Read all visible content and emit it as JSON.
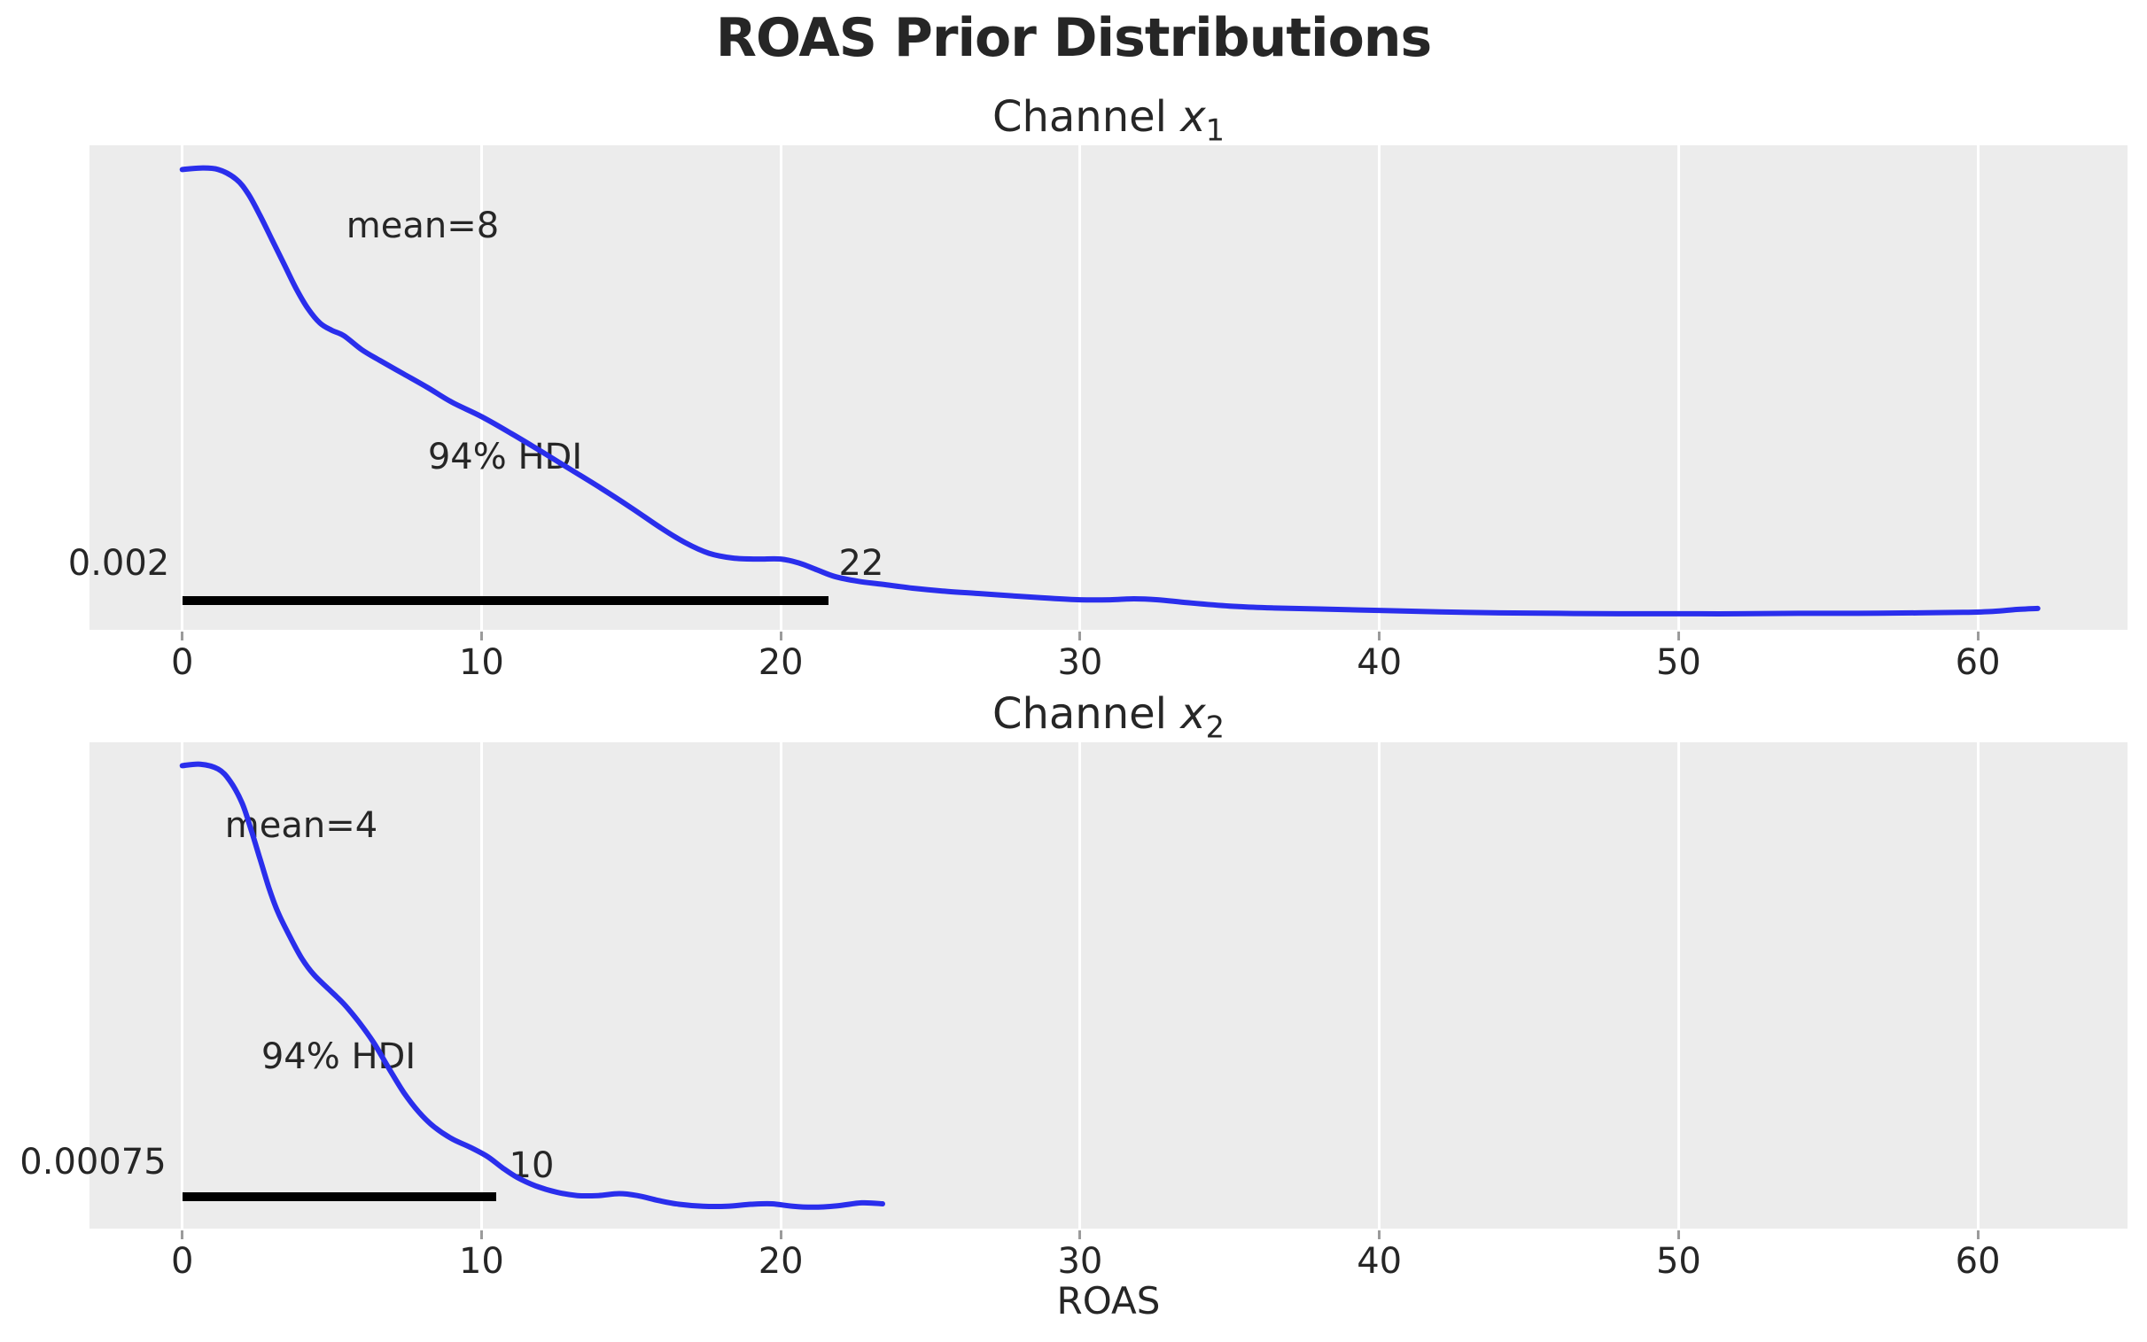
{
  "title": "ROAS Prior Distributions",
  "xlabel": "ROAS",
  "colors": {
    "figure_background": "#ffffff",
    "axes_background": "#ececec",
    "gridline": "#ffffff",
    "kde_line": "#2a2eec",
    "hdi_bar": "#000000",
    "text": "#262626",
    "tick_mark": "#9b9b9b"
  },
  "chart_data": [
    {
      "type": "line",
      "subtype": "kde-prior-density",
      "title_prefix": "Channel ",
      "var_symbol": "x",
      "var_subscript": "1",
      "mean": 8,
      "mean_label": "mean=8",
      "hdi_prob_label": "94% HDI",
      "hdi_low": 0.002,
      "hdi_low_label": "0.002",
      "hdi_high": 22,
      "hdi_high_label": "22",
      "hdi_bar": {
        "x_start": 0,
        "x_end": 21.6,
        "y_frac": 0.06,
        "thickness": 10
      },
      "xlim": [
        -3.1,
        65.0
      ],
      "xticks": [
        0,
        10,
        20,
        30,
        40,
        50,
        60
      ],
      "grid": "vertical-white",
      "legend": "none",
      "ylabel": "",
      "curve_note": "density_frac is height fraction of plot area (no y-axis shown in source)",
      "curve": [
        [
          0,
          0.95
        ],
        [
          0.6,
          0.953
        ],
        [
          1.2,
          0.95
        ],
        [
          1.8,
          0.93
        ],
        [
          2.2,
          0.9
        ],
        [
          2.6,
          0.855
        ],
        [
          3.0,
          0.805
        ],
        [
          3.4,
          0.755
        ],
        [
          3.8,
          0.705
        ],
        [
          4.2,
          0.663
        ],
        [
          4.6,
          0.633
        ],
        [
          5.0,
          0.618
        ],
        [
          5.4,
          0.607
        ],
        [
          6.0,
          0.578
        ],
        [
          6.6,
          0.556
        ],
        [
          7.4,
          0.528
        ],
        [
          8.2,
          0.5
        ],
        [
          9.0,
          0.47
        ],
        [
          10.0,
          0.44
        ],
        [
          11.0,
          0.405
        ],
        [
          12.0,
          0.368
        ],
        [
          13.0,
          0.33
        ],
        [
          14.0,
          0.292
        ],
        [
          15.0,
          0.252
        ],
        [
          16.0,
          0.21
        ],
        [
          16.8,
          0.18
        ],
        [
          17.6,
          0.158
        ],
        [
          18.4,
          0.148
        ],
        [
          19.2,
          0.146
        ],
        [
          20.0,
          0.146
        ],
        [
          20.6,
          0.138
        ],
        [
          21.2,
          0.124
        ],
        [
          21.8,
          0.11
        ],
        [
          22.6,
          0.1
        ],
        [
          23.4,
          0.094
        ],
        [
          24.4,
          0.086
        ],
        [
          25.4,
          0.08
        ],
        [
          26.6,
          0.075
        ],
        [
          28.0,
          0.069
        ],
        [
          29.0,
          0.065
        ],
        [
          30.0,
          0.062
        ],
        [
          31.0,
          0.062
        ],
        [
          31.8,
          0.064
        ],
        [
          32.6,
          0.062
        ],
        [
          33.6,
          0.056
        ],
        [
          35.0,
          0.049
        ],
        [
          36.5,
          0.045
        ],
        [
          38.0,
          0.043
        ],
        [
          40.0,
          0.04
        ],
        [
          42.0,
          0.037
        ],
        [
          44.0,
          0.035
        ],
        [
          46.0,
          0.034
        ],
        [
          48.0,
          0.033
        ],
        [
          50.0,
          0.033
        ],
        [
          52.0,
          0.033
        ],
        [
          54.0,
          0.034
        ],
        [
          56.0,
          0.034
        ],
        [
          58.0,
          0.035
        ],
        [
          59.5,
          0.036
        ],
        [
          60.5,
          0.038
        ],
        [
          61.3,
          0.042
        ],
        [
          62.0,
          0.044
        ]
      ]
    },
    {
      "type": "line",
      "subtype": "kde-prior-density",
      "title_prefix": "Channel ",
      "var_symbol": "x",
      "var_subscript": "2",
      "mean": 4,
      "mean_label": "mean=4",
      "hdi_prob_label": "94% HDI",
      "hdi_low": 0.00075,
      "hdi_low_label": "0.00075",
      "hdi_high": 10,
      "hdi_high_label": "10",
      "hdi_bar": {
        "x_start": 0,
        "x_end": 10.5,
        "y_frac": 0.066,
        "thickness": 10
      },
      "xlim": [
        -3.1,
        65.0
      ],
      "xticks": [
        0,
        10,
        20,
        30,
        40,
        50,
        60
      ],
      "grid": "vertical-white",
      "legend": "none",
      "ylabel": "",
      "curve_note": "density_frac is height fraction of plot area (no y-axis shown in source)",
      "curve": [
        [
          0,
          0.952
        ],
        [
          0.6,
          0.955
        ],
        [
          1.2,
          0.945
        ],
        [
          1.6,
          0.92
        ],
        [
          2.0,
          0.875
        ],
        [
          2.3,
          0.82
        ],
        [
          2.6,
          0.76
        ],
        [
          2.9,
          0.7
        ],
        [
          3.2,
          0.65
        ],
        [
          3.6,
          0.6
        ],
        [
          4.0,
          0.555
        ],
        [
          4.4,
          0.522
        ],
        [
          4.9,
          0.492
        ],
        [
          5.4,
          0.462
        ],
        [
          5.9,
          0.425
        ],
        [
          6.4,
          0.382
        ],
        [
          6.9,
          0.33
        ],
        [
          7.4,
          0.28
        ],
        [
          7.9,
          0.24
        ],
        [
          8.4,
          0.21
        ],
        [
          9.0,
          0.185
        ],
        [
          9.6,
          0.168
        ],
        [
          10.2,
          0.148
        ],
        [
          10.7,
          0.125
        ],
        [
          11.2,
          0.105
        ],
        [
          11.8,
          0.088
        ],
        [
          12.5,
          0.075
        ],
        [
          13.2,
          0.068
        ],
        [
          13.9,
          0.068
        ],
        [
          14.6,
          0.072
        ],
        [
          15.2,
          0.068
        ],
        [
          15.9,
          0.058
        ],
        [
          16.6,
          0.05
        ],
        [
          17.4,
          0.046
        ],
        [
          18.2,
          0.046
        ],
        [
          19.0,
          0.05
        ],
        [
          19.7,
          0.051
        ],
        [
          20.4,
          0.046
        ],
        [
          21.1,
          0.044
        ],
        [
          21.9,
          0.047
        ],
        [
          22.7,
          0.053
        ],
        [
          23.4,
          0.051
        ]
      ]
    }
  ]
}
